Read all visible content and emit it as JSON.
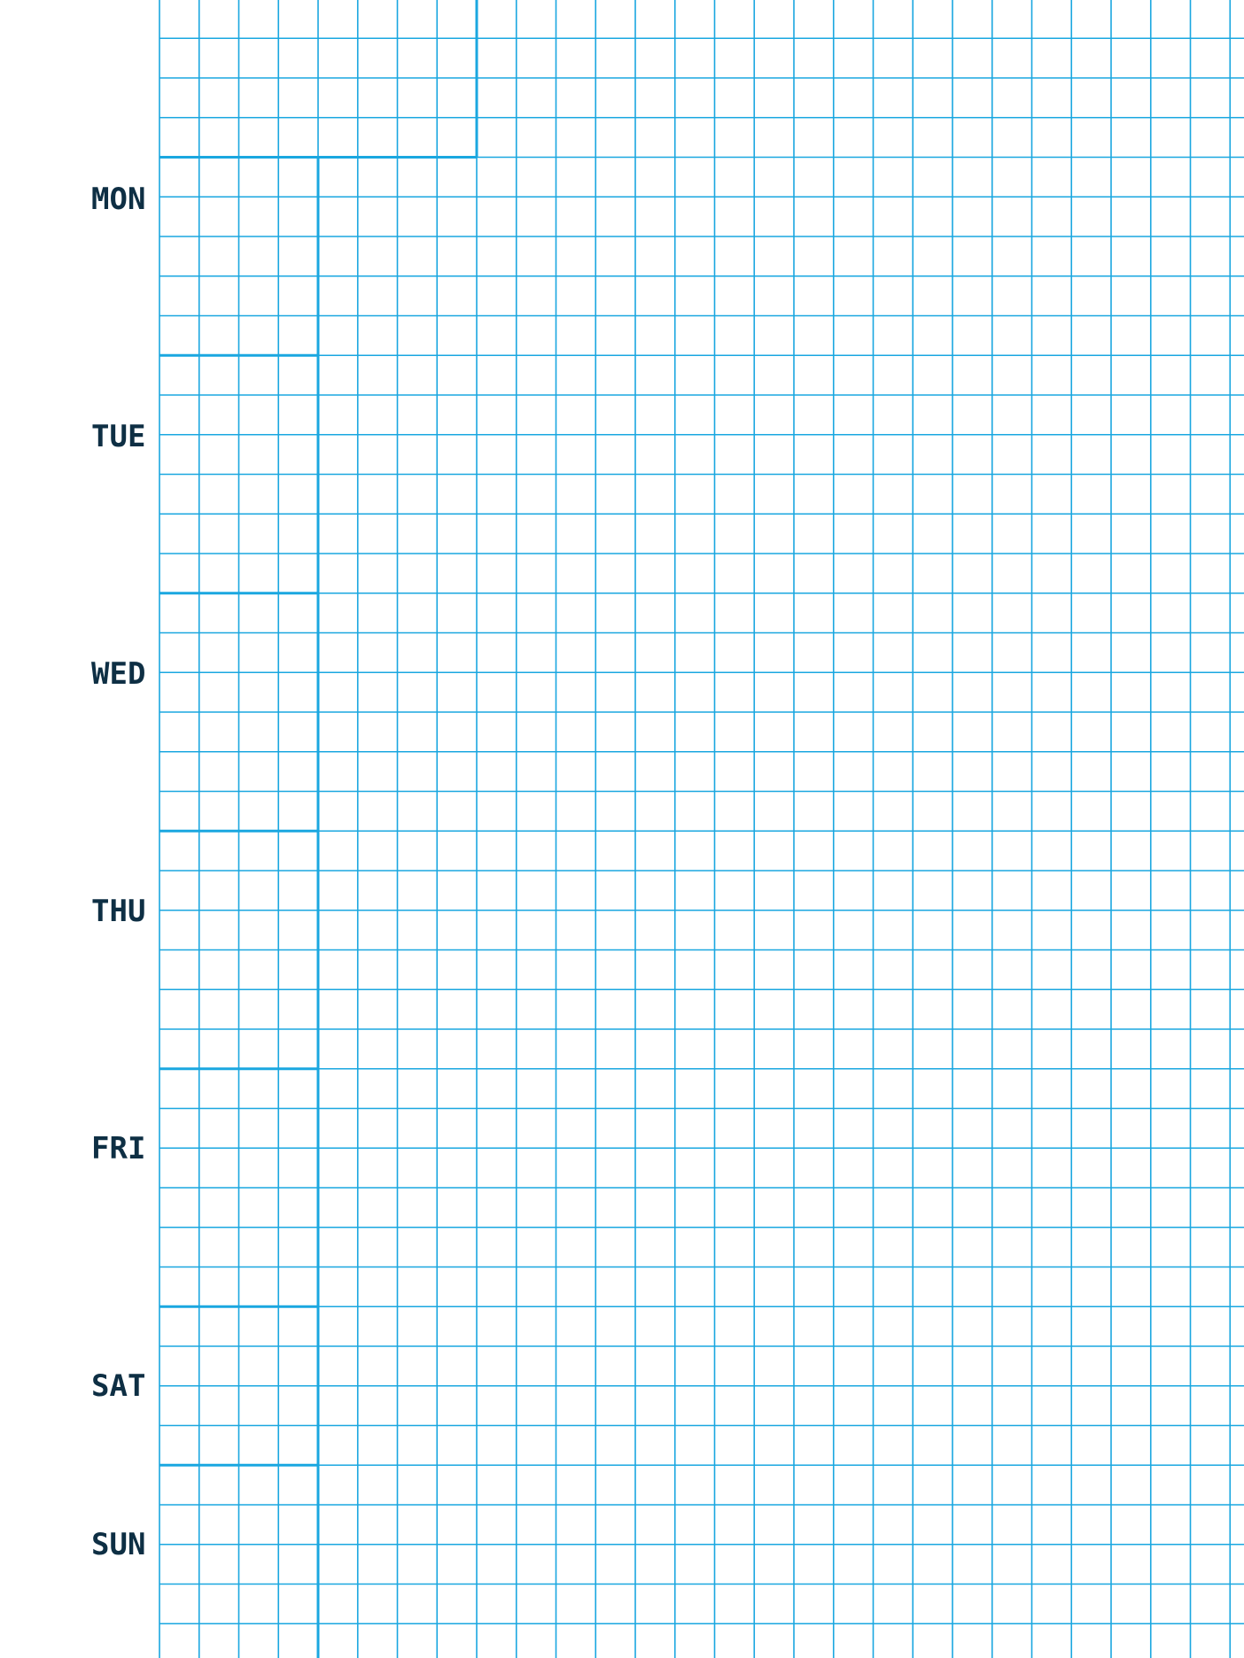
{
  "days": [
    {
      "key": "mon",
      "label": "MON"
    },
    {
      "key": "tue",
      "label": "TUE"
    },
    {
      "key": "wed",
      "label": "WED"
    },
    {
      "key": "thu",
      "label": "THU"
    },
    {
      "key": "fri",
      "label": "FRI"
    },
    {
      "key": "sat",
      "label": "SAT"
    },
    {
      "key": "sun",
      "label": "SUN"
    }
  ],
  "colors": {
    "grid_line": "#1aa7e0",
    "label_text": "#0e2f44",
    "background": "#ffffff"
  }
}
